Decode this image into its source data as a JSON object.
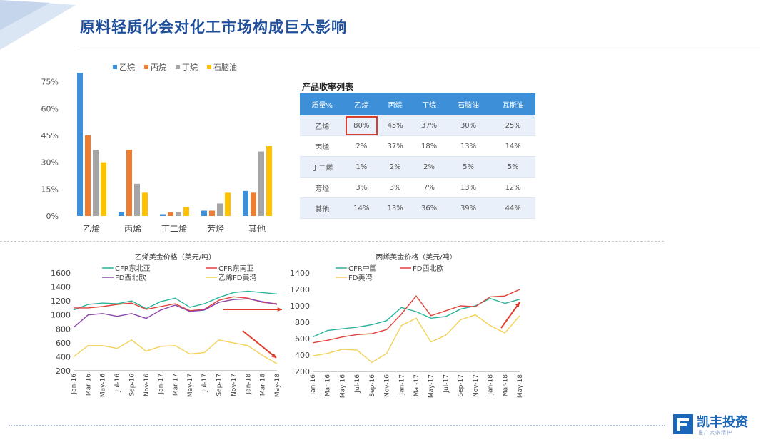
{
  "page": {
    "title": "原料轻质化会对化工市场构成巨大影响"
  },
  "colors": {
    "accent": "#1f4e9a",
    "header_blue": "#3d8fd8",
    "ethane": "#3d8fd8",
    "propane": "#ed7d31",
    "butane": "#a5a5a5",
    "naphtha": "#ffc000",
    "highlight": "#d9402b",
    "arrow": "#e03a2a"
  },
  "table": {
    "title": "产品收率列表",
    "headers": [
      "质量%",
      "乙烷",
      "丙烷",
      "丁烷",
      "石脑油",
      "瓦斯油"
    ],
    "rows": [
      [
        "乙烯",
        "80%",
        "45%",
        "37%",
        "30%",
        "25%"
      ],
      [
        "丙烯",
        "2%",
        "37%",
        "18%",
        "13%",
        "14%"
      ],
      [
        "丁二烯",
        "1%",
        "2%",
        "2%",
        "5%",
        "5%"
      ],
      [
        "芳烃",
        "3%",
        "3%",
        "7%",
        "13%",
        "12%"
      ],
      [
        "其他",
        "14%",
        "13%",
        "36%",
        "39%",
        "44%"
      ]
    ]
  },
  "logo": {
    "name": "凯丰投资",
    "tagline": "推广大宗精神"
  },
  "chart_data": [
    {
      "type": "bar",
      "categories": [
        "乙烯",
        "丙烯",
        "丁二烯",
        "芳烃",
        "其他"
      ],
      "series": [
        {
          "name": "乙烷",
          "values": [
            80,
            2,
            1,
            3,
            14
          ]
        },
        {
          "name": "丙烷",
          "values": [
            45,
            37,
            2,
            3,
            13
          ]
        },
        {
          "name": "丁烷",
          "values": [
            37,
            18,
            2,
            7,
            36
          ]
        },
        {
          "name": "石脑油",
          "values": [
            30,
            13,
            5,
            13,
            39
          ]
        }
      ],
      "yticks": [
        "75%",
        "60%",
        "45%",
        "30%",
        "15%",
        "0%"
      ],
      "ylim": [
        0,
        80
      ],
      "legend": "top"
    },
    {
      "type": "line",
      "title": "乙烯美金价格（美元/吨）",
      "x": [
        "Jan-16",
        "Mar-16",
        "May-16",
        "Jul-16",
        "Sep-16",
        "Nov-16",
        "Jan-17",
        "Mar-17",
        "May-17",
        "Jul-17",
        "Sep-17",
        "Nov-17",
        "Jan-18",
        "Mar-18",
        "May-18"
      ],
      "series": [
        {
          "name": "CFR东北亚",
          "values": [
            1070,
            1150,
            1170,
            1160,
            1200,
            1090,
            1190,
            1240,
            1110,
            1160,
            1250,
            1320,
            1340,
            1320,
            1300
          ]
        },
        {
          "name": "CFR东南亚",
          "values": [
            1100,
            1100,
            1120,
            1150,
            1170,
            1080,
            1120,
            1160,
            1060,
            1080,
            1210,
            1260,
            1240,
            1180,
            1160
          ]
        },
        {
          "name": "FD西北欧",
          "values": [
            820,
            1000,
            1020,
            980,
            1020,
            950,
            1070,
            1140,
            1050,
            1070,
            1180,
            1220,
            1230,
            1190,
            1150
          ]
        },
        {
          "name": "乙烯FD美湾",
          "values": [
            400,
            560,
            560,
            520,
            640,
            480,
            550,
            560,
            440,
            460,
            640,
            600,
            560,
            420,
            300
          ]
        }
      ],
      "ylim": [
        200,
        1600
      ],
      "yticks": [
        1600,
        1400,
        1200,
        1000,
        800,
        600,
        400,
        200
      ],
      "legend": "top"
    },
    {
      "type": "line",
      "title": "丙烯美金价格（美元/吨）",
      "x": [
        "Jan-16",
        "Mar-16",
        "May-16",
        "Jul-16",
        "Sep-16",
        "Nov-16",
        "Jan-17",
        "Mar-17",
        "May-17",
        "Jul-17",
        "Sep-17",
        "Nov-17",
        "Jan-18",
        "Mar-18",
        "May-18"
      ],
      "series": [
        {
          "name": "CFR中国",
          "values": [
            620,
            700,
            720,
            740,
            770,
            820,
            980,
            930,
            850,
            870,
            960,
            1000,
            1090,
            1030,
            1080
          ]
        },
        {
          "name": "FD西北欧",
          "values": [
            550,
            580,
            620,
            650,
            660,
            710,
            900,
            1120,
            880,
            940,
            1000,
            990,
            1110,
            1120,
            1200
          ]
        },
        {
          "name": "FD美湾",
          "values": [
            390,
            420,
            470,
            460,
            310,
            420,
            760,
            850,
            560,
            640,
            830,
            890,
            760,
            670,
            880
          ]
        }
      ],
      "ylim": [
        200,
        1400
      ],
      "yticks": [
        1400,
        1200,
        1000,
        800,
        600,
        400,
        200
      ],
      "legend": "top"
    }
  ]
}
